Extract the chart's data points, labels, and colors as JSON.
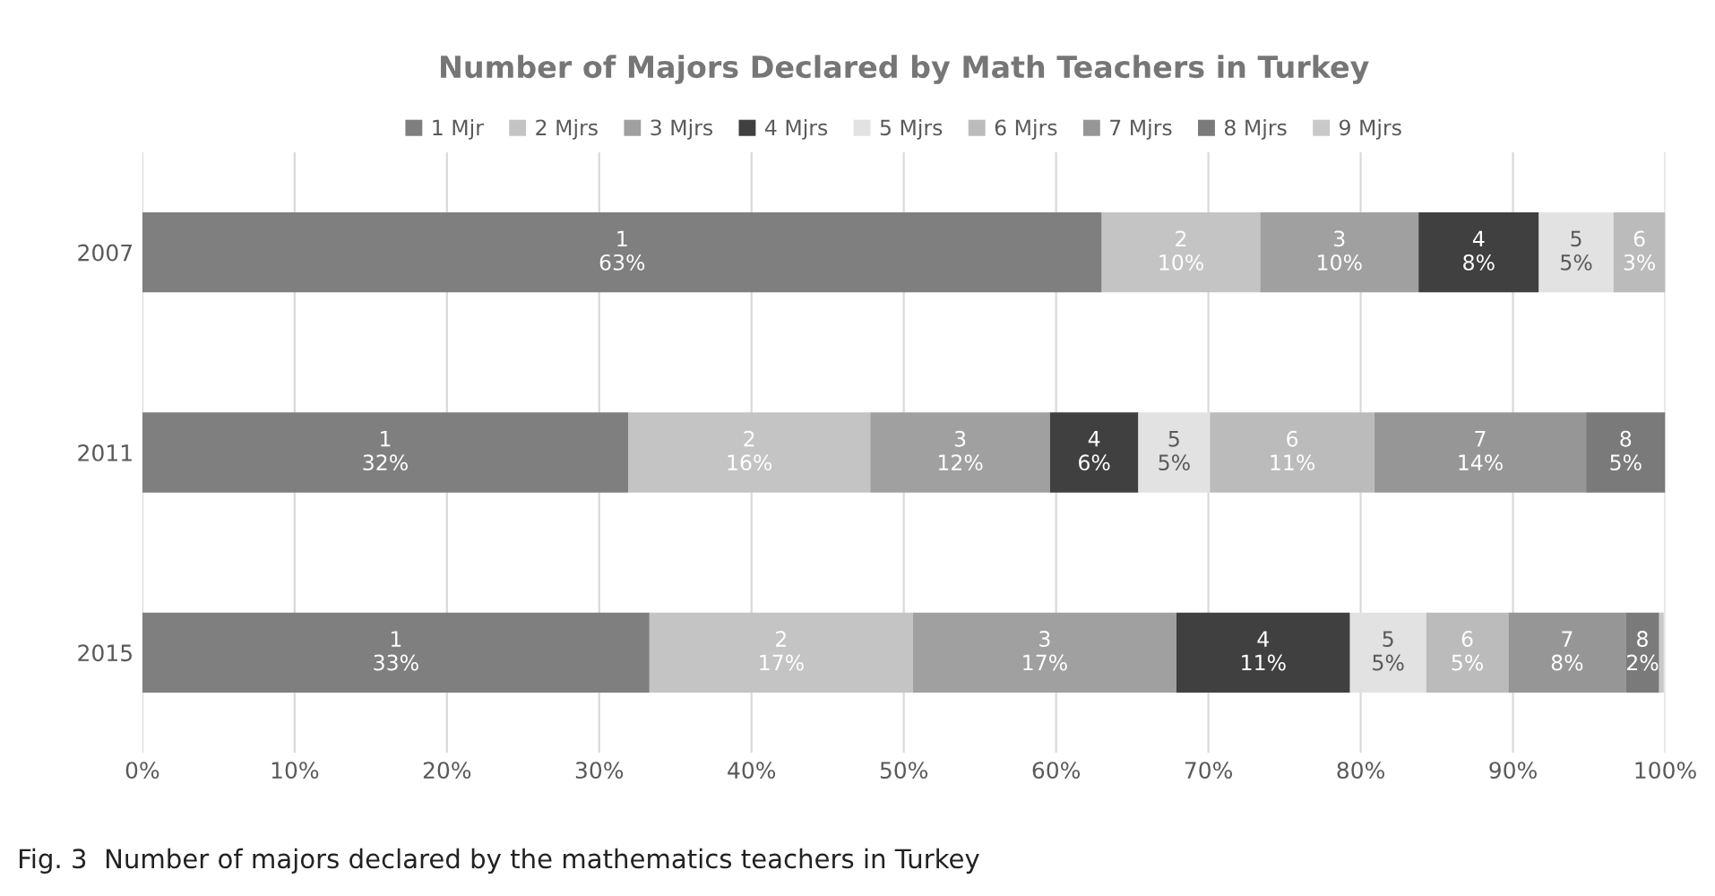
{
  "chart_data": {
    "type": "bar",
    "orientation": "horizontal",
    "stacked": true,
    "title": "Number of Majors Declared by Math Teachers in Turkey",
    "categories": [
      "2007",
      "2011",
      "2015"
    ],
    "series": [
      {
        "name": "1 Mjr",
        "color": "#7f7f7f",
        "values": [
          63,
          31.9,
          33.3
        ],
        "value_labels": [
          "1\n63%",
          "1\n32%",
          "1\n33%"
        ]
      },
      {
        "name": "2 Mjrs",
        "color": "#c4c4c4",
        "values": [
          10.4,
          15.9,
          17.3
        ],
        "value_labels": [
          "2\n10%",
          "2\n16%",
          "2\n17%"
        ]
      },
      {
        "name": "3 Mjrs",
        "color": "#a0a0a0",
        "values": [
          10.4,
          11.8,
          17.3
        ],
        "value_labels": [
          "3\n10%",
          "3\n12%",
          "3\n17%"
        ]
      },
      {
        "name": "4 Mjrs",
        "color": "#404040",
        "values": [
          7.9,
          5.8,
          11.4
        ],
        "value_labels": [
          "4\n8%",
          "4\n6%",
          "4\n11%"
        ]
      },
      {
        "name": "5 Mjrs",
        "color": "#e2e2e2",
        "values": [
          4.9,
          4.7,
          5.0
        ],
        "value_labels": [
          "5\n5%",
          "5\n5%",
          "5\n5%"
        ]
      },
      {
        "name": "6 Mjrs",
        "color": "#bbbbbb",
        "values": [
          3.4,
          10.8,
          5.4
        ],
        "value_labels": [
          "6\n3%",
          "6\n11%",
          "6\n5%"
        ]
      },
      {
        "name": "7 Mjrs",
        "color": "#969696",
        "values": [
          null,
          13.9,
          7.7
        ],
        "value_labels": [
          null,
          "7\n14%",
          "7\n8%"
        ]
      },
      {
        "name": "8 Mjrs",
        "color": "#7a7a7a",
        "values": [
          null,
          5.2,
          2.2
        ],
        "value_labels": [
          null,
          "8\n5%",
          "8\n2%"
        ]
      },
      {
        "name": "9 Mjrs",
        "color": "#c9c9c9",
        "values": [
          null,
          null,
          0.3
        ],
        "value_labels": [
          null,
          null,
          null
        ]
      }
    ],
    "xlim": [
      0,
      100
    ],
    "xticks": [
      {
        "value": 0,
        "label": "0%"
      },
      {
        "value": 10,
        "label": "10%"
      },
      {
        "value": 20,
        "label": "20%"
      },
      {
        "value": 30,
        "label": "30%"
      },
      {
        "value": 40,
        "label": "40%"
      },
      {
        "value": 50,
        "label": "50%"
      },
      {
        "value": 60,
        "label": "60%"
      },
      {
        "value": 70,
        "label": "70%"
      },
      {
        "value": 80,
        "label": "80%"
      },
      {
        "value": 90,
        "label": "90%"
      },
      {
        "value": 100,
        "label": "100%"
      }
    ],
    "grid": "x",
    "legend": "top",
    "annotations": [
      "Fig. 3  Number of majors declared by the mathematics teachers in Turkey"
    ]
  }
}
